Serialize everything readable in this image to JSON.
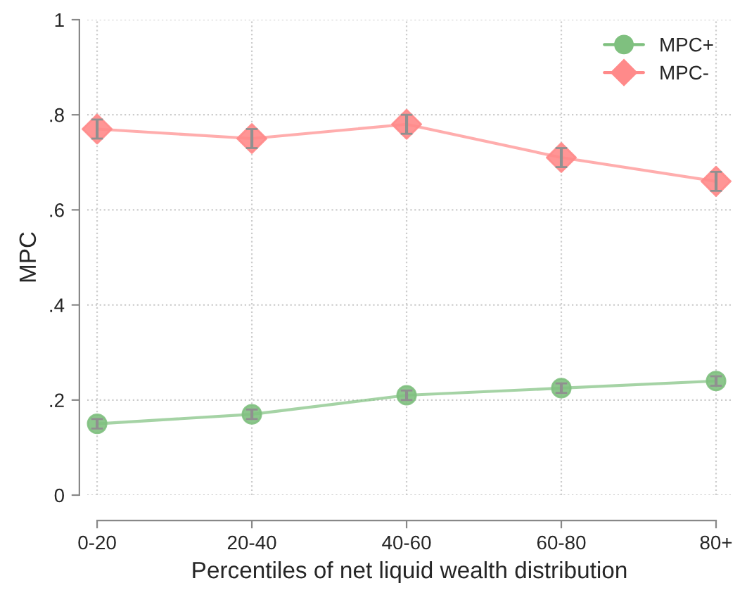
{
  "chart_data": {
    "type": "line",
    "xlabel": "Percentiles of net liquid wealth distribution",
    "ylabel": "MPC",
    "categories": [
      "0-20",
      "20-40",
      "40-60",
      "60-80",
      "80+"
    ],
    "series": [
      {
        "name": "MPC+",
        "color": "#7fc07f",
        "marker": "circle",
        "values": [
          0.15,
          0.17,
          0.21,
          0.225,
          0.24
        ],
        "errors": [
          0.01,
          0.01,
          0.01,
          0.01,
          0.01
        ]
      },
      {
        "name": "MPC-",
        "color": "#ff8a8a",
        "marker": "diamond",
        "values": [
          0.77,
          0.75,
          0.78,
          0.71,
          0.66
        ],
        "errors": [
          0.02,
          0.02,
          0.02,
          0.02,
          0.02
        ]
      }
    ],
    "ylim": [
      0,
      1
    ],
    "yticks": [
      0,
      {
        "value": 0.2,
        "label": ".2"
      },
      {
        "value": 0.4,
        "label": ".4"
      },
      {
        "value": 0.6,
        "label": ".6"
      },
      {
        "value": 0.8,
        "label": ".8"
      },
      1
    ],
    "grid": true,
    "legend": "top right",
    "line_style": "solid"
  }
}
